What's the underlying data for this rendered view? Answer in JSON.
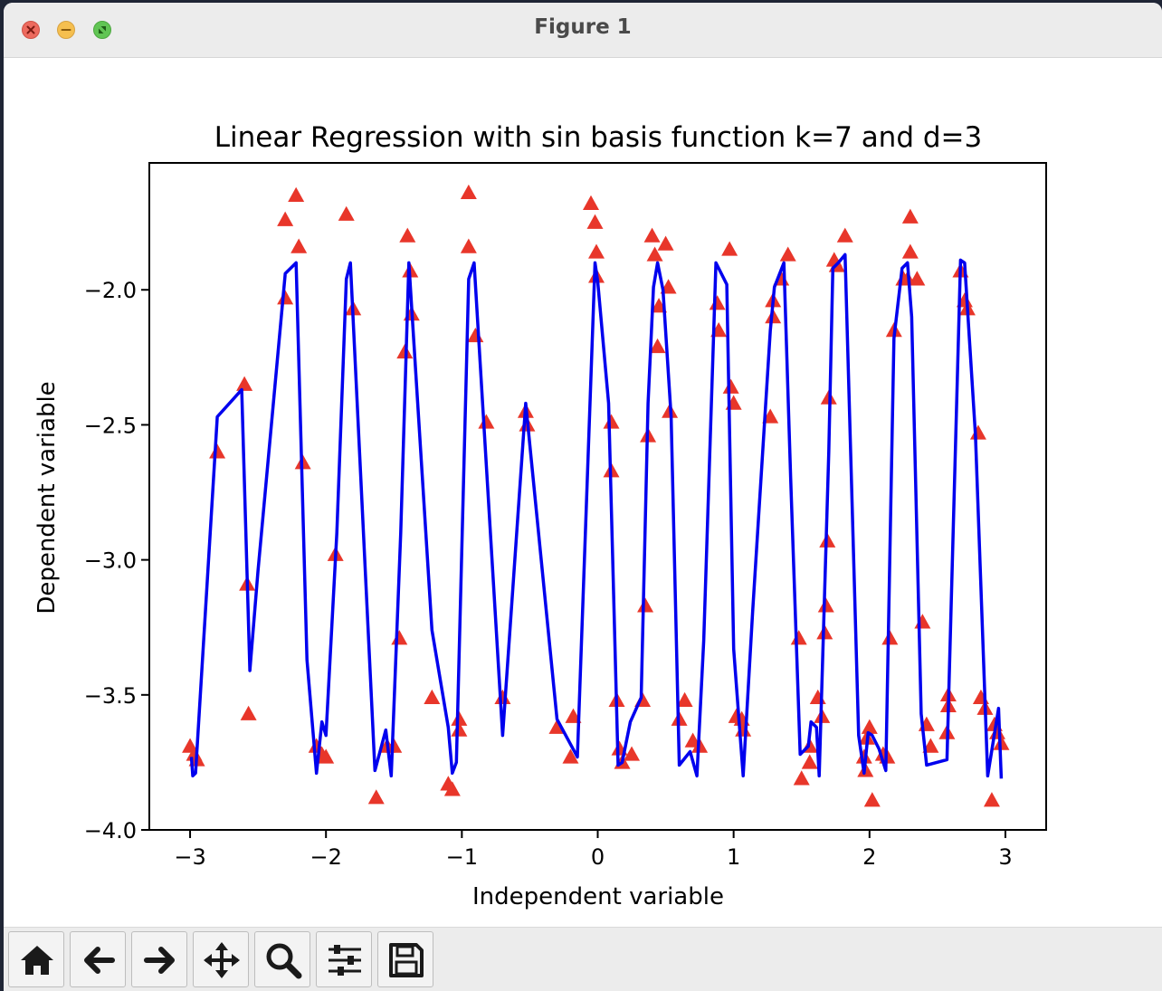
{
  "window": {
    "title": "Figure 1"
  },
  "toolbar": {
    "buttons": [
      {
        "name": "home-button",
        "icon": "home-icon"
      },
      {
        "name": "back-button",
        "icon": "arrow-left-icon"
      },
      {
        "name": "forward-button",
        "icon": "arrow-right-icon"
      },
      {
        "name": "pan-button",
        "icon": "move-icon"
      },
      {
        "name": "zoom-button",
        "icon": "zoom-icon"
      },
      {
        "name": "configure-subplots-button",
        "icon": "sliders-icon"
      },
      {
        "name": "save-button",
        "icon": "floppy-disk-icon"
      }
    ]
  },
  "chart_data": {
    "type": "scatter",
    "title": "Linear Regression with sin basis function k=7 and d=3",
    "xlabel": "Independent variable",
    "ylabel": "Dependent variable",
    "xlim": [
      -3.3,
      3.3
    ],
    "ylim": [
      -4.0,
      -1.53
    ],
    "xticks": [
      -3,
      -2,
      -1,
      0,
      1,
      2,
      3
    ],
    "xtick_labels": [
      "−3",
      "−2",
      "−1",
      "0",
      "1",
      "2",
      "3"
    ],
    "yticks": [
      -2.0,
      -2.5,
      -3.0,
      -3.5,
      -4.0
    ],
    "ytick_labels": [
      "−2.0",
      "−2.5",
      "−3.0",
      "−3.5",
      "−4.0"
    ],
    "grid": false,
    "colors": {
      "points": "#e8362a",
      "line": "#0000ee"
    },
    "series": [
      {
        "kind": "scatter",
        "marker": "triangle",
        "points": [
          [
            -3.0,
            -3.69
          ],
          [
            -2.97,
            -3.72
          ],
          [
            -2.95,
            -3.74
          ],
          [
            -2.8,
            -2.6
          ],
          [
            -2.6,
            -2.35
          ],
          [
            -2.58,
            -3.09
          ],
          [
            -2.57,
            -3.57
          ],
          [
            -2.3,
            -2.03
          ],
          [
            -2.3,
            -1.74
          ],
          [
            -2.22,
            -1.65
          ],
          [
            -2.2,
            -1.84
          ],
          [
            -2.17,
            -2.64
          ],
          [
            -2.07,
            -3.69
          ],
          [
            -2.03,
            -3.72
          ],
          [
            -2.0,
            -3.73
          ],
          [
            -1.93,
            -2.98
          ],
          [
            -1.85,
            -1.72
          ],
          [
            -1.8,
            -2.07
          ],
          [
            -1.63,
            -3.88
          ],
          [
            -1.55,
            -3.69
          ],
          [
            -1.5,
            -3.69
          ],
          [
            -1.46,
            -3.29
          ],
          [
            -1.42,
            -2.23
          ],
          [
            -1.4,
            -1.8
          ],
          [
            -1.38,
            -1.93
          ],
          [
            -1.37,
            -2.09
          ],
          [
            -1.22,
            -3.51
          ],
          [
            -1.1,
            -3.83
          ],
          [
            -1.07,
            -3.85
          ],
          [
            -1.02,
            -3.59
          ],
          [
            -1.02,
            -3.63
          ],
          [
            -0.95,
            -1.64
          ],
          [
            -0.95,
            -1.84
          ],
          [
            -0.9,
            -2.17
          ],
          [
            -0.82,
            -2.49
          ],
          [
            -0.7,
            -3.51
          ],
          [
            -0.53,
            -2.45
          ],
          [
            -0.52,
            -2.5
          ],
          [
            -0.3,
            -3.62
          ],
          [
            -0.2,
            -3.73
          ],
          [
            -0.18,
            -3.58
          ],
          [
            -0.05,
            -1.68
          ],
          [
            -0.02,
            -1.75
          ],
          [
            -0.01,
            -1.86
          ],
          [
            -0.01,
            -1.95
          ],
          [
            0.1,
            -2.49
          ],
          [
            0.1,
            -2.67
          ],
          [
            0.14,
            -3.52
          ],
          [
            0.16,
            -3.7
          ],
          [
            0.18,
            -3.75
          ],
          [
            0.25,
            -3.72
          ],
          [
            0.33,
            -3.52
          ],
          [
            0.35,
            -3.17
          ],
          [
            0.37,
            -2.54
          ],
          [
            0.4,
            -1.8
          ],
          [
            0.42,
            -1.87
          ],
          [
            0.44,
            -2.21
          ],
          [
            0.45,
            -2.06
          ],
          [
            0.5,
            -1.83
          ],
          [
            0.52,
            -1.99
          ],
          [
            0.53,
            -2.45
          ],
          [
            0.6,
            -3.59
          ],
          [
            0.64,
            -3.52
          ],
          [
            0.7,
            -3.67
          ],
          [
            0.75,
            -3.69
          ],
          [
            0.88,
            -2.05
          ],
          [
            0.89,
            -2.15
          ],
          [
            0.97,
            -1.85
          ],
          [
            0.98,
            -2.36
          ],
          [
            1.0,
            -2.42
          ],
          [
            1.02,
            -3.58
          ],
          [
            1.06,
            -3.59
          ],
          [
            1.07,
            -3.63
          ],
          [
            1.27,
            -2.47
          ],
          [
            1.29,
            -2.04
          ],
          [
            1.29,
            -2.1
          ],
          [
            1.35,
            -1.96
          ],
          [
            1.4,
            -1.87
          ],
          [
            1.48,
            -3.29
          ],
          [
            1.5,
            -3.81
          ],
          [
            1.56,
            -3.75
          ],
          [
            1.56,
            -3.69
          ],
          [
            1.62,
            -3.51
          ],
          [
            1.65,
            -3.58
          ],
          [
            1.67,
            -3.27
          ],
          [
            1.68,
            -3.17
          ],
          [
            1.69,
            -2.93
          ],
          [
            1.7,
            -2.4
          ],
          [
            1.74,
            -1.89
          ],
          [
            1.76,
            -1.91
          ],
          [
            1.82,
            -1.8
          ],
          [
            1.96,
            -3.73
          ],
          [
            1.97,
            -3.78
          ],
          [
            1.98,
            -3.66
          ],
          [
            2.0,
            -3.62
          ],
          [
            2.02,
            -3.89
          ],
          [
            2.1,
            -3.72
          ],
          [
            2.13,
            -3.73
          ],
          [
            2.15,
            -3.29
          ],
          [
            2.18,
            -2.15
          ],
          [
            2.25,
            -1.96
          ],
          [
            2.28,
            -1.96
          ],
          [
            2.3,
            -1.73
          ],
          [
            2.3,
            -1.86
          ],
          [
            2.35,
            -1.96
          ],
          [
            2.39,
            -3.23
          ],
          [
            2.42,
            -3.61
          ],
          [
            2.45,
            -3.69
          ],
          [
            2.57,
            -3.64
          ],
          [
            2.58,
            -3.54
          ],
          [
            2.58,
            -3.5
          ],
          [
            2.67,
            -1.93
          ],
          [
            2.7,
            -2.04
          ],
          [
            2.72,
            -2.07
          ],
          [
            2.8,
            -2.53
          ],
          [
            2.82,
            -3.51
          ],
          [
            2.85,
            -3.55
          ],
          [
            2.9,
            -3.89
          ],
          [
            2.92,
            -3.61
          ],
          [
            2.94,
            -3.64
          ],
          [
            2.97,
            -3.68
          ]
        ]
      },
      {
        "kind": "line",
        "points": [
          [
            -2.99,
            -3.73
          ],
          [
            -2.98,
            -3.8
          ],
          [
            -2.96,
            -3.79
          ],
          [
            -2.8,
            -2.47
          ],
          [
            -2.62,
            -2.37
          ],
          [
            -2.56,
            -3.41
          ],
          [
            -2.5,
            -3.04
          ],
          [
            -2.3,
            -1.94
          ],
          [
            -2.22,
            -1.9
          ],
          [
            -2.14,
            -3.37
          ],
          [
            -2.07,
            -3.79
          ],
          [
            -2.03,
            -3.6
          ],
          [
            -2.0,
            -3.65
          ],
          [
            -1.92,
            -2.9
          ],
          [
            -1.85,
            -1.96
          ],
          [
            -1.82,
            -1.9
          ],
          [
            -1.64,
            -3.78
          ],
          [
            -1.56,
            -3.63
          ],
          [
            -1.52,
            -3.8
          ],
          [
            -1.45,
            -2.9
          ],
          [
            -1.39,
            -1.9
          ],
          [
            -1.22,
            -3.26
          ],
          [
            -1.1,
            -3.62
          ],
          [
            -1.07,
            -3.79
          ],
          [
            -1.04,
            -3.75
          ],
          [
            -0.95,
            -1.96
          ],
          [
            -0.91,
            -1.9
          ],
          [
            -0.7,
            -3.65
          ],
          [
            -0.53,
            -2.42
          ],
          [
            -0.3,
            -3.59
          ],
          [
            -0.15,
            -3.73
          ],
          [
            -0.02,
            -1.9
          ],
          [
            0.0,
            -1.97
          ],
          [
            0.08,
            -2.42
          ],
          [
            0.15,
            -3.76
          ],
          [
            0.18,
            -3.75
          ],
          [
            0.24,
            -3.6
          ],
          [
            0.32,
            -3.51
          ],
          [
            0.37,
            -2.42
          ],
          [
            0.41,
            -1.99
          ],
          [
            0.44,
            -1.9
          ],
          [
            0.48,
            -2.0
          ],
          [
            0.54,
            -2.47
          ],
          [
            0.6,
            -3.76
          ],
          [
            0.68,
            -3.71
          ],
          [
            0.73,
            -3.8
          ],
          [
            0.78,
            -3.3
          ],
          [
            0.87,
            -1.9
          ],
          [
            0.95,
            -1.98
          ],
          [
            1.0,
            -3.33
          ],
          [
            1.07,
            -3.8
          ],
          [
            1.14,
            -3.19
          ],
          [
            1.27,
            -2.15
          ],
          [
            1.3,
            -1.99
          ],
          [
            1.37,
            -1.9
          ],
          [
            1.42,
            -2.7
          ],
          [
            1.49,
            -3.72
          ],
          [
            1.55,
            -3.69
          ],
          [
            1.57,
            -3.6
          ],
          [
            1.61,
            -3.62
          ],
          [
            1.63,
            -3.8
          ],
          [
            1.7,
            -2.6
          ],
          [
            1.73,
            -1.92
          ],
          [
            1.77,
            -1.9
          ],
          [
            1.82,
            -1.87
          ],
          [
            1.92,
            -3.65
          ],
          [
            1.96,
            -3.79
          ],
          [
            1.99,
            -3.64
          ],
          [
            2.02,
            -3.65
          ],
          [
            2.07,
            -3.7
          ],
          [
            2.12,
            -3.78
          ],
          [
            2.18,
            -2.18
          ],
          [
            2.24,
            -1.92
          ],
          [
            2.28,
            -1.9
          ],
          [
            2.31,
            -2.1
          ],
          [
            2.38,
            -3.57
          ],
          [
            2.42,
            -3.76
          ],
          [
            2.57,
            -3.74
          ],
          [
            2.67,
            -1.89
          ],
          [
            2.7,
            -1.9
          ],
          [
            2.78,
            -2.54
          ],
          [
            2.87,
            -3.8
          ],
          [
            2.95,
            -3.55
          ],
          [
            2.97,
            -3.81
          ]
        ]
      }
    ]
  }
}
